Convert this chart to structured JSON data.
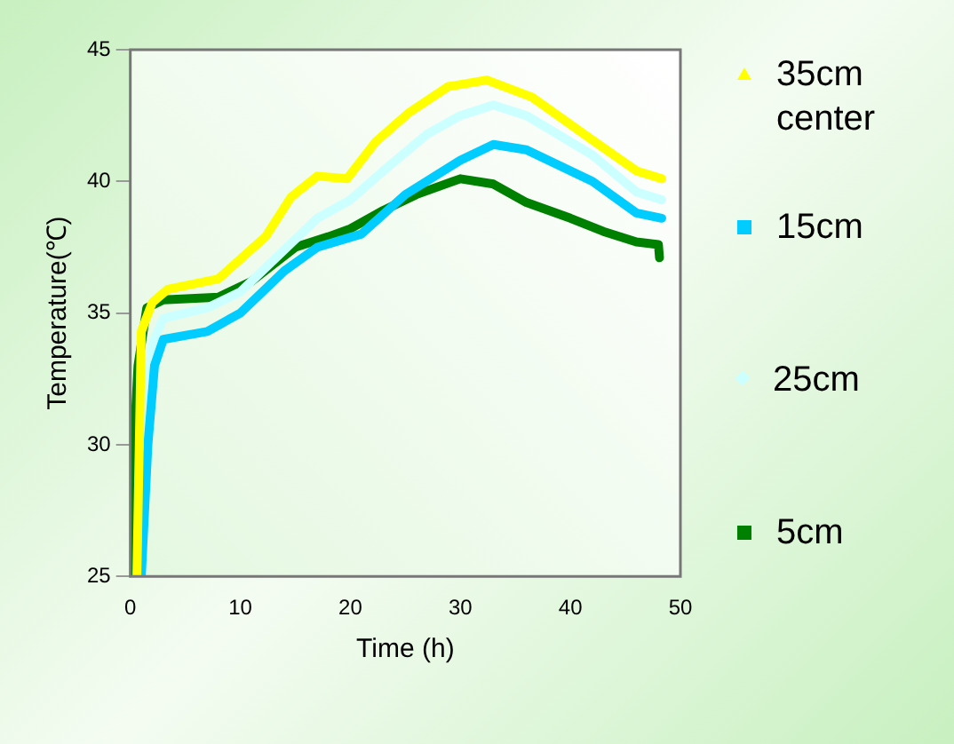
{
  "chart_data": {
    "type": "line",
    "xlabel": "Time (h)",
    "ylabel": "Temperature(℃)",
    "xlim": [
      0,
      50
    ],
    "xticks": [
      0,
      10,
      20,
      30,
      40,
      50
    ],
    "ylim": [
      25,
      45
    ],
    "yticks": [
      25,
      30,
      35,
      40,
      45
    ],
    "grid": false,
    "legend": "right",
    "line_style": "solid",
    "series": [
      {
        "name": "35cm center",
        "color": "#ffff00",
        "marker": "triangle",
        "x": [
          0.6,
          1,
          2,
          3.4,
          8,
          12.3,
          14.6,
          17,
          19.7,
          22.3,
          25.3,
          28.9,
          32.4,
          36.5,
          41.9,
          46,
          48.3
        ],
        "values": [
          25,
          34.3,
          35.4,
          35.9,
          36.3,
          37.9,
          39.4,
          40.2,
          40.1,
          41.5,
          42.6,
          43.6,
          43.85,
          43.2,
          41.6,
          40.4,
          40.1
        ]
      },
      {
        "name": "15cm",
        "color": "#00ccff",
        "marker": "square",
        "x": [
          1,
          1.6,
          2.2,
          3,
          7,
          10,
          14,
          17,
          21,
          25,
          30,
          33,
          36,
          42,
          46,
          48.3
        ],
        "values": [
          25,
          30,
          33,
          34,
          34.3,
          35,
          36.6,
          37.5,
          38,
          39.5,
          40.8,
          41.4,
          41.2,
          40,
          38.8,
          38.6
        ]
      },
      {
        "name": "25cm",
        "color": "#ccffff",
        "marker": "diamond",
        "x": [
          0.8,
          1.3,
          2,
          3,
          7,
          10,
          14,
          17,
          20,
          23,
          27,
          30,
          33,
          36,
          42,
          46,
          48.3
        ],
        "values": [
          25,
          31,
          33.8,
          34.8,
          35.2,
          35.8,
          37.4,
          38.6,
          39.3,
          40.4,
          41.8,
          42.5,
          42.9,
          42.5,
          41,
          39.6,
          39.3
        ]
      },
      {
        "name": "5cm",
        "color": "#008000",
        "marker": "square",
        "x": [
          0,
          0.2,
          0.7,
          1.5,
          3,
          8,
          11,
          15,
          18,
          20,
          23,
          26,
          30,
          33,
          36,
          40,
          43,
          46,
          48,
          48.1
        ],
        "values": [
          25,
          29,
          33,
          35.2,
          35.5,
          35.6,
          36.2,
          37.5,
          37.9,
          38.2,
          38.9,
          39.5,
          40.1,
          39.9,
          39.2,
          38.6,
          38.1,
          37.7,
          37.6,
          37.1
        ]
      }
    ]
  }
}
